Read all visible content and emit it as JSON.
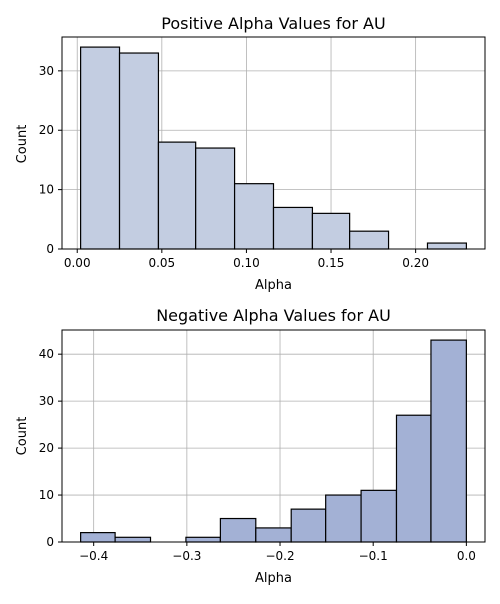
{
  "chart_data": [
    {
      "type": "bar",
      "title": "Positive Alpha Values for AU",
      "xlabel": "Alpha",
      "ylabel": "Count",
      "xlim": [
        -0.009,
        0.241
      ],
      "ylim": [
        0,
        35.7
      ],
      "grid": true,
      "bar_color": "#c3cde1",
      "edge_color": "#000000",
      "bins": [
        {
          "start": 0.002,
          "end": 0.025,
          "value": 34
        },
        {
          "start": 0.025,
          "end": 0.048,
          "value": 33
        },
        {
          "start": 0.048,
          "end": 0.07,
          "value": 18
        },
        {
          "start": 0.07,
          "end": 0.093,
          "value": 17
        },
        {
          "start": 0.093,
          "end": 0.116,
          "value": 11
        },
        {
          "start": 0.116,
          "end": 0.139,
          "value": 7
        },
        {
          "start": 0.139,
          "end": 0.161,
          "value": 6
        },
        {
          "start": 0.161,
          "end": 0.184,
          "value": 3
        },
        {
          "start": 0.184,
          "end": 0.207,
          "value": 0
        },
        {
          "start": 0.207,
          "end": 0.23,
          "value": 1
        }
      ],
      "xticks": [
        0.0,
        0.05,
        0.1,
        0.15,
        0.2
      ],
      "xtick_labels": [
        "0.00",
        "0.05",
        "0.10",
        "0.15",
        "0.20"
      ],
      "yticks": [
        0,
        10,
        20,
        30
      ],
      "ytick_labels": [
        "0",
        "10",
        "20",
        "30"
      ]
    },
    {
      "type": "bar",
      "title": "Negative Alpha Values for AU",
      "xlabel": "Alpha",
      "ylabel": "Count",
      "xlim": [
        -0.434,
        0.02
      ],
      "ylim": [
        0,
        45.15
      ],
      "grid": true,
      "bar_color": "#a3b1d5",
      "edge_color": "#000000",
      "bins": [
        {
          "start": -0.414,
          "end": -0.377,
          "value": 2
        },
        {
          "start": -0.377,
          "end": -0.339,
          "value": 1
        },
        {
          "start": -0.339,
          "end": -0.301,
          "value": 0
        },
        {
          "start": -0.301,
          "end": -0.264,
          "value": 1
        },
        {
          "start": -0.264,
          "end": -0.226,
          "value": 5
        },
        {
          "start": -0.226,
          "end": -0.188,
          "value": 3
        },
        {
          "start": -0.188,
          "end": -0.151,
          "value": 7
        },
        {
          "start": -0.151,
          "end": -0.113,
          "value": 10
        },
        {
          "start": -0.113,
          "end": -0.075,
          "value": 11
        },
        {
          "start": -0.075,
          "end": -0.038,
          "value": 27
        },
        {
          "start": -0.038,
          "end": 0.0,
          "value": 43
        }
      ],
      "xticks": [
        -0.4,
        -0.3,
        -0.2,
        -0.1,
        0.0
      ],
      "xtick_labels": [
        "−0.4",
        "−0.3",
        "−0.2",
        "−0.1",
        "0.0"
      ],
      "yticks": [
        0,
        10,
        20,
        30,
        40
      ],
      "ytick_labels": [
        "0",
        "10",
        "20",
        "30",
        "40"
      ]
    }
  ]
}
